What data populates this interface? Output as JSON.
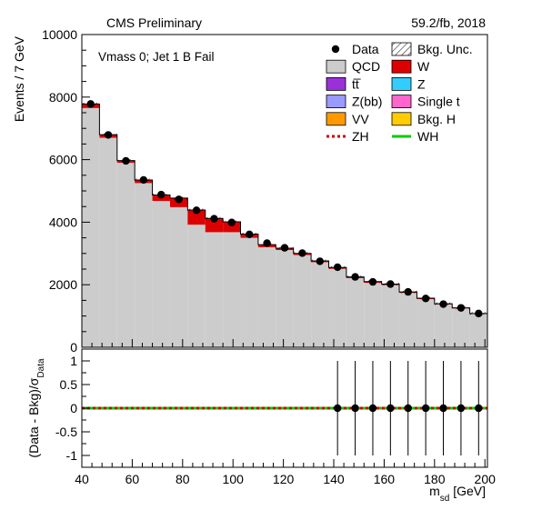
{
  "header": {
    "left": "CMS Preliminary",
    "right": "59.2/fb, 2018"
  },
  "region_label": "Vmass 0; Jet 1 B Fail",
  "legend": [
    {
      "key": "data",
      "label": "Data",
      "style": "marker",
      "color": "#000000"
    },
    {
      "key": "unc",
      "label": "Bkg. Unc.",
      "style": "hatch",
      "color": "#000000"
    },
    {
      "key": "qcd",
      "label": "QCD",
      "style": "fill",
      "color": "#cccccc"
    },
    {
      "key": "w",
      "label": "W",
      "style": "fill",
      "color": "#dd0000"
    },
    {
      "key": "ttbar",
      "label": "tt̅",
      "style": "fill",
      "color": "#9b30d9"
    },
    {
      "key": "z",
      "label": "Z",
      "style": "fill",
      "color": "#33ccff"
    },
    {
      "key": "zbb",
      "label": "Z(bb)",
      "style": "fill",
      "color": "#9999ff"
    },
    {
      "key": "singlet",
      "label": "Single t",
      "style": "fill",
      "color": "#ff66cc"
    },
    {
      "key": "vv",
      "label": "VV",
      "style": "fill",
      "color": "#ff9900"
    },
    {
      "key": "bkgh",
      "label": "Bkg. H",
      "style": "fill",
      "color": "#ffcc00"
    },
    {
      "key": "zh",
      "label": "ZH",
      "style": "dashed",
      "color": "#cc0000"
    },
    {
      "key": "wh",
      "label": "WH",
      "style": "line",
      "color": "#00cc00"
    }
  ],
  "chart_data": [
    {
      "type": "bar",
      "panel": "main",
      "xlabel": "",
      "ylabel": "Events / 7 GeV",
      "xlim": [
        40,
        201
      ],
      "ylim": [
        0,
        10000
      ],
      "yticks": [
        0,
        2000,
        4000,
        6000,
        8000,
        10000
      ],
      "bin_edges": [
        40,
        47,
        54,
        61,
        68,
        75,
        82,
        89,
        96,
        103,
        110,
        117,
        124,
        131,
        138,
        145,
        152,
        159,
        166,
        173,
        180,
        187,
        194,
        201
      ],
      "series": [
        {
          "name": "QCD",
          "values": [
            7650,
            6700,
            5900,
            5250,
            4680,
            4480,
            3920,
            3680,
            3680,
            3500,
            3200,
            3110,
            2950,
            2720,
            2510,
            2210,
            2060,
            1990,
            1740,
            1540,
            1370,
            1240,
            1070
          ]
        },
        {
          "name": "W",
          "values": [
            130,
            100,
            70,
            100,
            190,
            290,
            470,
            440,
            330,
            120,
            80,
            60,
            50,
            40,
            40,
            40,
            40,
            30,
            30,
            30,
            20,
            20,
            10
          ]
        }
      ],
      "data_points": [
        7780,
        6790,
        5960,
        5350,
        4880,
        4730,
        4380,
        4110,
        3990,
        3610,
        3330,
        3180,
        3010,
        2750,
        2560,
        2250,
        2090,
        2020,
        1770,
        1560,
        1380,
        1260,
        1080
      ]
    },
    {
      "type": "scatter",
      "panel": "ratio",
      "xlabel": "m_sd [GeV]",
      "ylabel": "(Data - Bkg)/σ_Data",
      "xlim": [
        40,
        201
      ],
      "ylim": [
        -1.25,
        1.25
      ],
      "yticks": [
        -1,
        -0.5,
        0,
        0.5,
        1
      ],
      "xticks": [
        40,
        60,
        80,
        100,
        120,
        140,
        160,
        180,
        200
      ],
      "x": [
        141.5,
        148.5,
        155.5,
        162.5,
        169.5,
        176.5,
        183.5,
        190.5,
        197.5
      ],
      "y": [
        0,
        0,
        0,
        0,
        0,
        0,
        0,
        0,
        0
      ],
      "yerr": [
        1,
        1,
        1,
        1,
        1,
        1,
        1,
        1,
        1
      ]
    }
  ]
}
